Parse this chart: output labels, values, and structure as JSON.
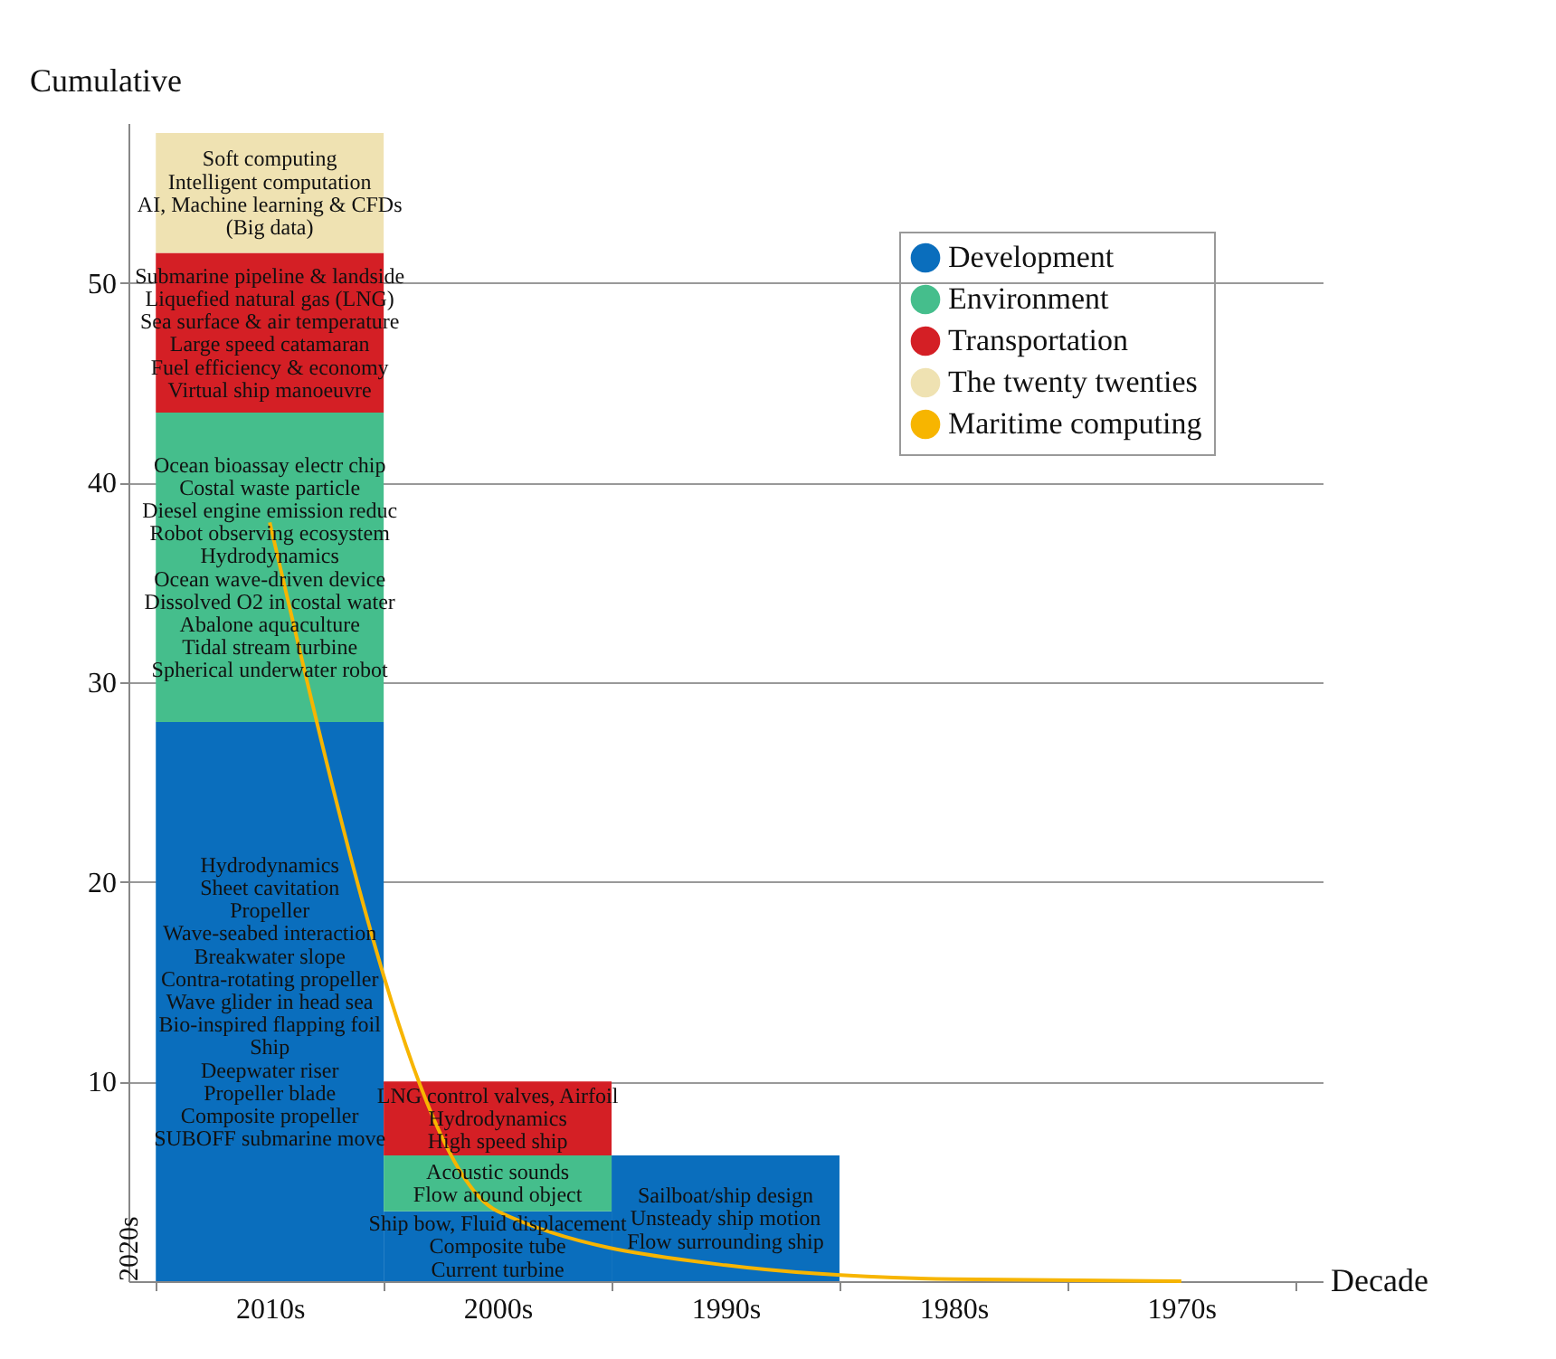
{
  "chart_data": {
    "type": "bar",
    "stacked": true,
    "xlabel": "Decade",
    "ylabel": "Cumulative",
    "categories": [
      "2010s",
      "2000s",
      "1990s",
      "1980s",
      "1970s"
    ],
    "series": [
      {
        "name": "Development",
        "color": "#0a6ebd",
        "values": [
          28,
          3.5,
          6.3,
          null,
          null
        ]
      },
      {
        "name": "Environment",
        "color": "#45be8c",
        "values": [
          15.5,
          2.8,
          null,
          null,
          null
        ]
      },
      {
        "name": "Transportation",
        "color": "#d41f25",
        "values": [
          8,
          3.7,
          null,
          null,
          null
        ]
      },
      {
        "name": "The twenty twenties",
        "color": "#efe2b2",
        "values": [
          6,
          null,
          null,
          null,
          null
        ]
      },
      {
        "name": "Maritime computing",
        "type": "line",
        "color": "#f7b500",
        "values": [
          38,
          3.5,
          0.8,
          0.1,
          0
        ]
      }
    ],
    "ylim": [
      0,
      58
    ],
    "yticks": [
      10,
      20,
      30,
      40,
      50
    ],
    "grid": "y",
    "legend": "top right",
    "annotations": [
      "2020s",
      "Hydrodynamics\nSheet cavitation\nPropeller\nWave-seabed interaction\nBreakwater slope\nContra-rotating propeller\nWave glider in head sea\nBio-inspired flapping foil\nShip\nDeepwater riser\nPropeller blade\nComposite propeller\nSUBOFF submarine move",
      "Ocean bioassay electr chip\nCostal waste particle\nDiesel engine emission reduc\nRobot observing ecosystem\nHydrodynamics\nOcean wave-driven device\nDissolved O2 in costal water\nAbalone aquaculture\nTidal stream turbine\nSpherical underwater robot",
      "Submarine pipeline & landside\nLiquefied natural gas (LNG)\nSea surface & air temperature\nLarge speed catamaran\nFuel efficiency & economy\nVirtual ship manoeuvre",
      "Soft computing\nIntelligent computation\nAI, Machine learning & CFDs\n(Big data)",
      "Ship bow, Fluid displacement\nComposite tube\nCurrent turbine",
      "Acoustic sounds\nFlow around object",
      "LNG control valves, Airfoil\nHydrodynamics\nHigh speed ship",
      "Sailboat/ship design\nUnsteady ship motion\nFlow surrounding ship"
    ]
  }
}
